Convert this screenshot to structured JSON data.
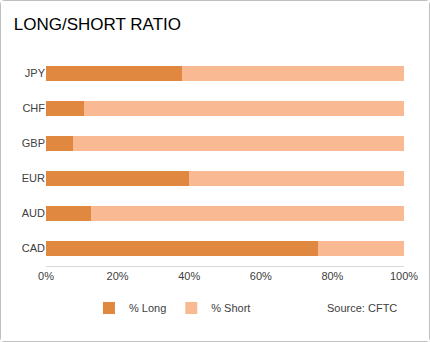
{
  "chart_data": {
    "type": "bar",
    "title": "LONG/SHORT RATIO",
    "orientation": "horizontal",
    "stacked": true,
    "categories": [
      "JPY",
      "CHF",
      "GBP",
      "EUR",
      "AUD",
      "CAD"
    ],
    "series": [
      {
        "name": "% Long",
        "color": "#e0883f",
        "values": [
          38,
          10.5,
          7.5,
          40,
          12.5,
          76
        ]
      },
      {
        "name": "% Short",
        "color": "#f9b992",
        "values": [
          62,
          89.5,
          92.5,
          60,
          87.5,
          24
        ]
      }
    ],
    "xlim": [
      0,
      100
    ],
    "xticks": [
      {
        "value": 0,
        "label": "0%"
      },
      {
        "value": 20,
        "label": "20%"
      },
      {
        "value": 40,
        "label": "40%"
      },
      {
        "value": 60,
        "label": "60%"
      },
      {
        "value": 80,
        "label": "80%"
      },
      {
        "value": 100,
        "label": "100%"
      }
    ],
    "grid": false,
    "legend": "bottom",
    "annotations": [
      "Source: CFTC"
    ]
  }
}
